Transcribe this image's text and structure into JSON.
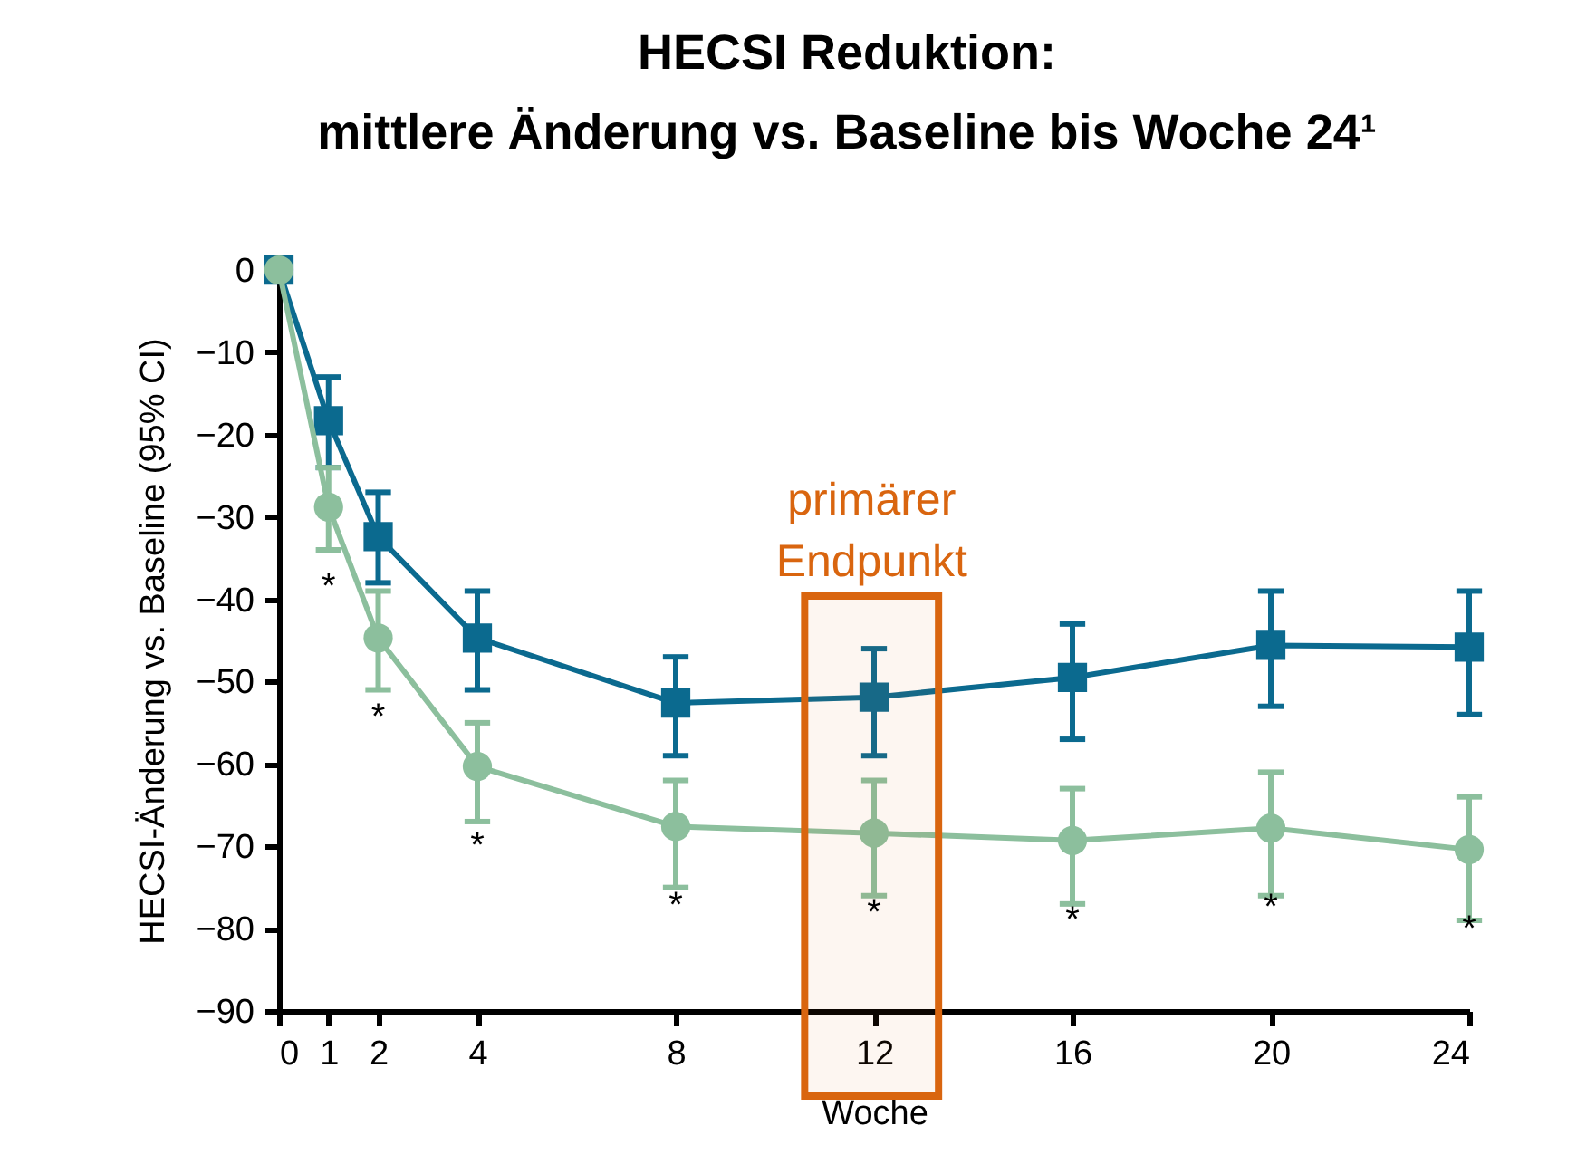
{
  "chart_data": {
    "type": "line",
    "title": "HECSI Reduktion:\nmittlere  Änderung  vs. Baseline bis Woche 24¹",
    "xlabel": "Woche",
    "ylabel": "HECSI-Änderung vs. Baseline (95% CI)",
    "x": [
      0,
      1,
      2,
      4,
      8,
      12,
      16,
      20,
      24
    ],
    "series": [
      {
        "color": "#0b6a8f",
        "marker": "square",
        "values": [
          0,
          -18.3,
          -32.4,
          -44.7,
          -52.6,
          -51.9,
          -49.5,
          -45.6,
          -45.8
        ],
        "errors": [
          null,
          [
            -24,
            -13
          ],
          [
            -38,
            -27
          ],
          [
            -51,
            -39
          ],
          [
            -59,
            -47
          ],
          [
            -59,
            -46
          ],
          [
            -57,
            -43
          ],
          [
            -53,
            -39
          ],
          [
            -54,
            -39
          ]
        ]
      },
      {
        "color": "#8cbf9d",
        "marker": "circle",
        "values": [
          0,
          -28.8,
          -44.7,
          -60.3,
          -67.6,
          -68.4,
          -69.3,
          -67.8,
          -70.4
        ],
        "errors": [
          null,
          [
            -34,
            -24
          ],
          [
            -51,
            -39
          ],
          [
            -67,
            -55
          ],
          [
            -75,
            -62
          ],
          [
            -76,
            -62
          ],
          [
            -77,
            -63
          ],
          [
            -76,
            -61
          ],
          [
            -79,
            -64
          ]
        ]
      }
    ],
    "xlim": [
      0,
      24
    ],
    "xticks": [
      0,
      1,
      2,
      4,
      8,
      12,
      16,
      20,
      24
    ],
    "ylim": [
      -90,
      0
    ],
    "yticks": [
      0,
      -10,
      -20,
      -30,
      -40,
      -50,
      -60,
      -70,
      -80,
      -90
    ],
    "bands": [
      {
        "axis": "x",
        "from": 10.6,
        "to": 13.3,
        "label": "primärer Endpunkt",
        "color": "#d9650f"
      }
    ],
    "annotations": [
      {
        "text": "*",
        "x": 1,
        "y": -28.8
      },
      {
        "text": "*",
        "x": 2,
        "y": -44.7
      },
      {
        "text": "*",
        "x": 4,
        "y": -60.3
      },
      {
        "text": "*",
        "x": 8,
        "y": -67.6
      },
      {
        "text": "*",
        "x": 12,
        "y": -68.4
      },
      {
        "text": "*",
        "x": 16,
        "y": -69.3
      },
      {
        "text": "*",
        "x": 20,
        "y": -67.8
      },
      {
        "text": "*",
        "x": 24,
        "y": -70.4
      }
    ],
    "grid": false
  }
}
